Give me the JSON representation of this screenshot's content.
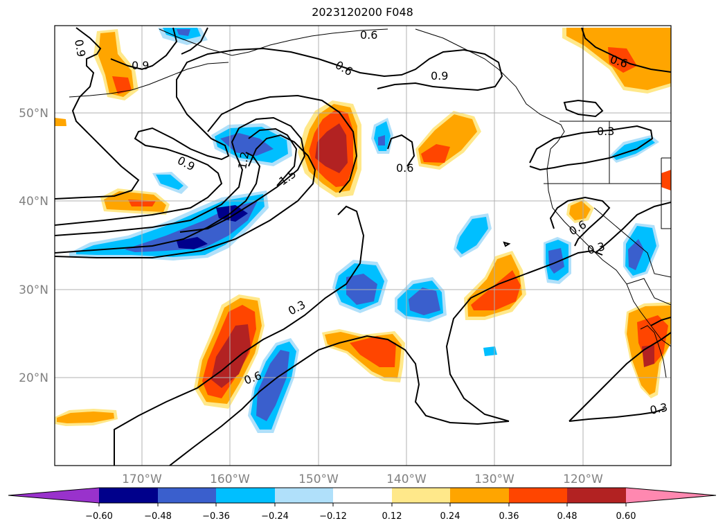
{
  "title": "2023120200 F048",
  "map": {
    "lon_labels": [
      "170°W",
      "160°W",
      "150°W",
      "140°W",
      "130°W",
      "120°W"
    ],
    "lat_labels": [
      "20°N",
      "30°N",
      "40°N",
      "50°N"
    ],
    "contour_labels": [
      "0.9",
      "0.9",
      "0.6",
      "0.6",
      "0.9",
      "1.2",
      "1.5",
      "0.6",
      "0.6",
      "0.3",
      "0.3",
      "0.3",
      "0.6",
      "0.6",
      "0.3",
      "0.9"
    ]
  },
  "colorbar": {
    "ticks": [
      "−0.60",
      "−0.48",
      "−0.36",
      "−0.24",
      "−0.12",
      "0.12",
      "0.24",
      "0.36",
      "0.48",
      "0.60"
    ],
    "colors": {
      "below": "#9932cc",
      "n060": "#00008b",
      "n048": "#3a5fcd",
      "n036": "#00bfff",
      "n024": "#b0e0fa",
      "zero": "#ffffff",
      "p012": "#ffe88a",
      "p024": "#ffa500",
      "p036": "#ff4500",
      "p048": "#b22222",
      "above": "#ff88b0"
    }
  }
}
